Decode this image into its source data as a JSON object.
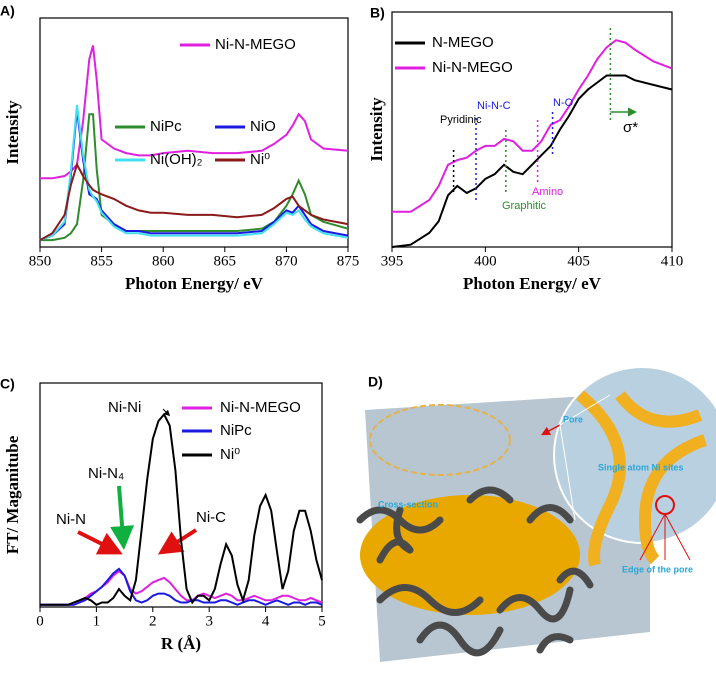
{
  "chart_data": [
    {
      "type": "line",
      "label": "A)",
      "x_label": "Photon Energy/ eV",
      "y_label": "Intensity",
      "x": [
        850,
        851,
        852,
        852.5,
        853,
        853.5,
        854,
        854.3,
        854.6,
        855,
        856,
        857,
        858,
        859,
        860,
        862,
        864,
        866,
        868,
        869,
        870,
        870.5,
        871,
        871.5,
        872,
        873,
        875
      ],
      "xlim": [
        850,
        875
      ],
      "xticks": [
        850,
        855,
        860,
        865,
        870,
        875
      ],
      "ylim": [
        0,
        100
      ],
      "series": [
        {
          "name": "Ni-N-MEGO",
          "color": "#e020e0",
          "values": [
            30,
            30,
            31,
            33,
            36,
            55,
            82,
            88,
            73,
            47,
            43,
            41,
            40,
            40,
            41,
            42,
            41,
            41,
            42,
            45,
            49,
            53,
            58,
            55,
            47,
            43,
            42
          ]
        },
        {
          "name": "NiPc",
          "color": "#2e8b2e",
          "values": [
            3,
            3,
            4,
            6,
            10,
            29,
            58,
            58,
            34,
            14,
            10,
            7,
            7,
            7,
            7,
            7,
            7,
            7,
            8,
            11,
            18,
            23,
            29,
            23,
            14,
            11,
            8
          ]
        },
        {
          "name": "NiO",
          "color": "#1a1ae0",
          "values": [
            3,
            5,
            10,
            31,
            60,
            38,
            23,
            22,
            21,
            16,
            10,
            7,
            7,
            6,
            6,
            6,
            6,
            6,
            7,
            11,
            16,
            15,
            18,
            14,
            10,
            7,
            5
          ]
        },
        {
          "name": "Ni(OH)₂",
          "color": "#40e0f0",
          "values": [
            3,
            5,
            11,
            33,
            62,
            40,
            25,
            22,
            20,
            15,
            9,
            6,
            6,
            5,
            5,
            5,
            5,
            5,
            6,
            10,
            15,
            14,
            16,
            12,
            9,
            6,
            4
          ]
        },
        {
          "name": "Ni⁰",
          "color": "#8b1a1a",
          "values": [
            3,
            6,
            14,
            27,
            36,
            31,
            27,
            25,
            24,
            23,
            21,
            18,
            16,
            15,
            15,
            14,
            14,
            13,
            14,
            17,
            21,
            22,
            18,
            16,
            14,
            12,
            10
          ]
        }
      ]
    },
    {
      "type": "line",
      "label": "B)",
      "x_label": "Photon Energy/ eV",
      "y_label": "Intensity",
      "x": [
        395,
        396,
        397,
        397.5,
        398,
        398.5,
        399,
        399.5,
        400,
        400.5,
        401,
        401.5,
        402,
        402.5,
        403,
        403.5,
        404,
        404.5,
        405,
        405.5,
        406,
        406.5,
        407,
        407.5,
        408,
        409,
        410
      ],
      "xlim": [
        395,
        410
      ],
      "xticks": [
        395,
        400,
        405,
        410
      ],
      "ylim": [
        0,
        100
      ],
      "series": [
        {
          "name": "N-MEGO",
          "color": "#000000",
          "values": [
            0,
            1,
            6,
            11,
            22,
            26,
            23,
            25,
            29,
            31,
            35,
            32,
            31,
            35,
            39,
            43,
            50,
            56,
            63,
            67,
            70,
            73,
            73,
            73,
            71,
            69,
            67
          ]
        },
        {
          "name": "Ni-N-MEGO",
          "color": "#e020e0",
          "values": [
            15,
            15,
            20,
            26,
            35,
            37,
            38,
            41,
            43,
            43,
            46,
            45,
            41,
            41,
            45,
            52,
            54,
            60,
            67,
            73,
            80,
            85,
            88,
            87,
            84,
            79,
            76
          ]
        }
      ],
      "annotations": [
        {
          "text": "Pyridinic",
          "x": 398.3,
          "color": "#000000"
        },
        {
          "text": "Ni-N-C",
          "x": 399.5,
          "color": "#1a1ae0"
        },
        {
          "text": "Graphitic",
          "x": 401.1,
          "color": "#2e8b2e"
        },
        {
          "text": "Amino",
          "x": 402.8,
          "color": "#e020e0"
        },
        {
          "text": "N-O",
          "x": 403.6,
          "color": "#1a1ae0"
        },
        {
          "text": "σ*",
          "x": 406.7,
          "color": "#2e8b2e"
        }
      ]
    },
    {
      "type": "line",
      "label": "C)",
      "x_label": "R (Å)",
      "y_label": "FT/ Maganitube",
      "x": [
        0,
        0.1,
        0.2,
        0.3,
        0.4,
        0.5,
        0.6,
        0.7,
        0.8,
        0.9,
        1.0,
        1.1,
        1.2,
        1.3,
        1.4,
        1.5,
        1.6,
        1.7,
        1.8,
        1.9,
        2.0,
        2.1,
        2.2,
        2.3,
        2.4,
        2.5,
        2.6,
        2.7,
        2.8,
        2.9,
        3.0,
        3.1,
        3.2,
        3.3,
        3.4,
        3.5,
        3.6,
        3.7,
        3.8,
        3.9,
        4.0,
        4.1,
        4.2,
        4.3,
        4.4,
        4.5,
        4.6,
        4.7,
        4.8,
        4.9,
        5.0
      ],
      "xlim": [
        0,
        5
      ],
      "xticks": [
        0,
        1,
        2,
        3,
        4,
        5
      ],
      "ylim": [
        0,
        100
      ],
      "series": [
        {
          "name": "Ni-N-MEGO",
          "color": "#e020e0",
          "values": [
            1,
            1,
            1,
            1,
            1,
            1,
            1,
            2,
            4,
            6,
            7,
            9,
            11,
            14,
            16,
            14,
            8,
            6,
            7,
            9,
            11,
            12,
            13,
            11,
            8,
            5,
            3,
            3,
            5,
            6,
            5,
            4,
            5,
            6,
            5,
            3,
            3,
            4,
            5,
            4,
            3,
            3,
            4,
            5,
            5,
            4,
            3,
            3,
            4,
            3,
            2
          ]
        },
        {
          "name": "NiPc",
          "color": "#1a1ae0",
          "values": [
            1,
            1,
            1,
            1,
            1,
            1,
            1,
            2,
            3,
            5,
            7,
            9,
            12,
            15,
            17,
            14,
            7,
            3,
            2,
            3,
            5,
            6,
            6,
            5,
            3,
            2,
            2,
            3,
            3,
            2,
            2,
            2,
            3,
            3,
            2,
            1,
            2,
            3,
            3,
            2,
            1,
            2,
            3,
            2,
            1,
            2,
            2,
            1,
            2,
            2,
            1
          ]
        },
        {
          "name": "Ni⁰",
          "color": "#000000",
          "values": [
            1,
            1,
            1,
            1,
            1,
            1,
            2,
            3,
            4,
            3,
            1,
            2,
            2,
            4,
            8,
            5,
            3,
            12,
            34,
            57,
            75,
            83,
            86,
            81,
            61,
            30,
            8,
            2,
            5,
            5,
            3,
            8,
            19,
            28,
            23,
            10,
            3,
            12,
            32,
            45,
            50,
            43,
            25,
            8,
            16,
            34,
            43,
            43,
            34,
            21,
            12
          ]
        }
      ],
      "annotations": [
        {
          "text": "Ni-Ni"
        },
        {
          "text": "Ni-N"
        },
        {
          "text": "Ni-N₄"
        },
        {
          "text": "Ni-C"
        }
      ]
    }
  ],
  "illustration": {
    "label": "D)",
    "texts": [
      "Pore",
      "Cross-section",
      "Single atom Ni sites",
      "Edge of the pore"
    ]
  }
}
